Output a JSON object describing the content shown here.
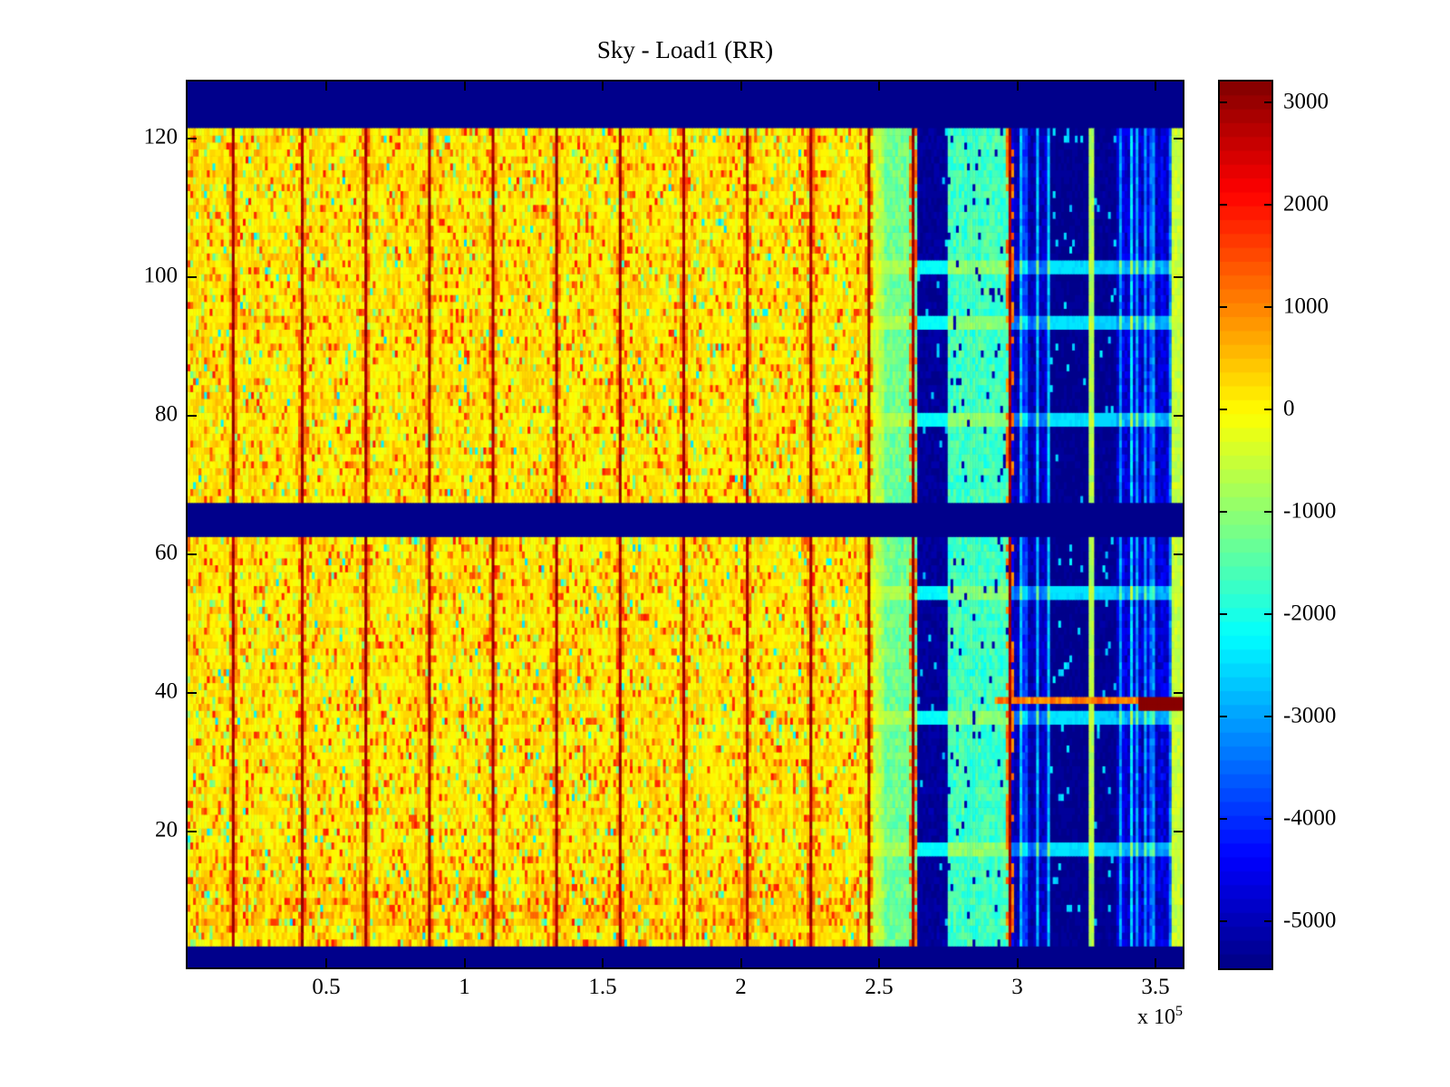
{
  "figure": {
    "title": "Sky - Load1 (RR)",
    "x_scale_prefix": "x 10",
    "x_scale_exponent": "5"
  },
  "colors": {
    "background": "#ffffff",
    "frame": "#000000"
  },
  "chart_data": {
    "type": "heatmap",
    "title": "Sky - Load1 (RR)",
    "colormap": "jet",
    "x_axis": {
      "tick_labels": [
        "0.5",
        "1",
        "1.5",
        "2",
        "2.5",
        "3",
        "3.5"
      ],
      "tick_values": [
        0.5,
        1,
        1.5,
        2,
        2.5,
        3,
        3.5
      ],
      "scale_label": "x 10^5",
      "range": [
        0.0,
        3.6
      ]
    },
    "y_axis": {
      "tick_labels": [
        "20",
        "40",
        "60",
        "80",
        "100",
        "120"
      ],
      "tick_values": [
        20,
        40,
        60,
        80,
        100,
        120
      ],
      "range": [
        0.5,
        128.5
      ]
    },
    "colorbar": {
      "tick_labels": [
        "3000",
        "2000",
        "1000",
        "0",
        "-1000",
        "-2000",
        "-3000",
        "-4000",
        "-5000"
      ],
      "tick_values": [
        3000,
        2000,
        1000,
        0,
        -1000,
        -2000,
        -3000,
        -4000,
        -5000
      ],
      "vmin": -5460,
      "vmax": 3200,
      "levels": 64
    },
    "colormap_stops": [
      [
        0.0,
        0,
        0,
        131
      ],
      [
        0.125,
        0,
        0,
        255
      ],
      [
        0.375,
        0,
        255,
        255
      ],
      [
        0.625,
        255,
        255,
        0
      ],
      [
        0.875,
        255,
        0,
        0
      ],
      [
        1.0,
        128,
        0,
        0
      ]
    ],
    "grid": {
      "n_cols": 360,
      "row_range": [
        4,
        121
      ],
      "blank_row_gap": [
        63,
        67
      ]
    },
    "structure": {
      "seed": 1337,
      "quiet": {
        "c1": 244,
        "base": 120,
        "noise": 360,
        "green_p": 0.055,
        "green": [
          -1450,
          -520
        ],
        "cyan_p": 0.012,
        "cyan": [
          -2600,
          -1600
        ],
        "hot_p": 0.125,
        "hot": [
          640,
          1950
        ]
      },
      "hot_rows_quiet": {
        "rows": [
          7,
          13
        ],
        "boost": 170,
        "hot_p": 0.2
      },
      "regions": [
        {
          "c0": 244,
          "c1": 252,
          "type": "lerp",
          "base0": 60,
          "base1": -950,
          "noise": 340,
          "rowBoost": 300
        },
        {
          "c0": 252,
          "c1": 264,
          "type": "flat",
          "base": -1280,
          "noise": 380,
          "rowBoost": 500
        },
        {
          "c0": 264,
          "c1": 275,
          "type": "flat",
          "base": -5250,
          "noise": 180,
          "rowBoost": 3050,
          "cyanP": 0.02
        },
        {
          "c0": 275,
          "c1": 298,
          "type": "flat",
          "base": -1680,
          "noise": 430,
          "rowBoost": 650,
          "darkP": 0.04
        },
        {
          "c0": 298,
          "c1": 312,
          "type": "cols",
          "choices": [
            [
              -4950,
              0.42
            ],
            [
              -2750,
              0.33
            ],
            [
              -3900,
              0.25
            ]
          ],
          "noise": 350,
          "rowBoost": 1500
        },
        {
          "c0": 312,
          "c1": 326,
          "type": "flat",
          "base": -5350,
          "noise": 120,
          "rowBoost": 2900,
          "cyanP": 0.03
        },
        {
          "c0": 326,
          "c1": 328,
          "type": "flat",
          "base": -700,
          "noise": 250,
          "rowBoost": 200
        },
        {
          "c0": 328,
          "c1": 336,
          "type": "flat",
          "base": -5300,
          "noise": 140,
          "rowBoost": 2700,
          "cyanP": 0.05
        },
        {
          "c0": 336,
          "c1": 356,
          "type": "cols",
          "choices": [
            [
              -4750,
              0.45
            ],
            [
              -3300,
              0.3
            ],
            [
              -2500,
              0.25
            ]
          ],
          "noise": 420,
          "rowBoost": 1800
        },
        {
          "c0": 356,
          "c1": 360,
          "type": "flat",
          "base": -520,
          "noise": 280,
          "rowBoost": 0
        }
      ],
      "stripes": {
        "cols": [
          16,
          41,
          64,
          87,
          110,
          133,
          156,
          179,
          202,
          225,
          246,
          262,
          297
        ],
        "value": [
          2650,
          3200
        ],
        "neighbor_p": 0.5,
        "neighbor": [
          750,
          1500
        ]
      },
      "bright_rows": [
        17,
        36,
        54,
        79,
        93,
        101
      ],
      "hot_row_right": {
        "row": 39,
        "c0": 292,
        "v": [
          600,
          1500
        ],
        "bar_c0": 344,
        "bar_rows": [
          38,
          39
        ],
        "bar_v": 3180
      }
    }
  }
}
